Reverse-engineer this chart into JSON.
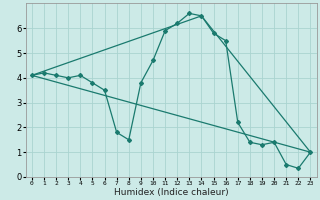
{
  "xlabel": "Humidex (Indice chaleur)",
  "background_color": "#cceae7",
  "grid_color": "#aad4d0",
  "line_color": "#1a7a6e",
  "xlim": [
    -0.5,
    23.5
  ],
  "ylim": [
    0,
    7
  ],
  "xticks": [
    0,
    1,
    2,
    3,
    4,
    5,
    6,
    7,
    8,
    9,
    10,
    11,
    12,
    13,
    14,
    15,
    16,
    17,
    18,
    19,
    20,
    21,
    22,
    23
  ],
  "yticks": [
    0,
    1,
    2,
    3,
    4,
    5,
    6
  ],
  "series1_x": [
    0,
    1,
    2,
    3,
    4,
    5,
    6,
    7,
    8,
    9,
    10,
    11,
    12,
    13,
    14,
    15,
    16,
    17,
    18,
    19,
    20,
    21,
    22,
    23
  ],
  "series1_y": [
    4.1,
    4.2,
    4.1,
    4.0,
    4.1,
    3.8,
    3.5,
    1.8,
    1.5,
    3.8,
    4.7,
    5.9,
    6.2,
    6.6,
    6.5,
    5.8,
    5.5,
    2.2,
    1.4,
    1.3,
    1.4,
    0.5,
    0.35,
    1.0
  ],
  "series2_x": [
    0,
    23
  ],
  "series2_y": [
    4.1,
    1.0
  ],
  "series3_x": [
    0,
    14,
    23
  ],
  "series3_y": [
    4.1,
    6.5,
    1.0
  ],
  "marker": "D",
  "marker_size": 2.0,
  "line_width": 0.9,
  "xlabel_fontsize": 6.5,
  "tick_fontsize_x": 4.5,
  "tick_fontsize_y": 6.0
}
